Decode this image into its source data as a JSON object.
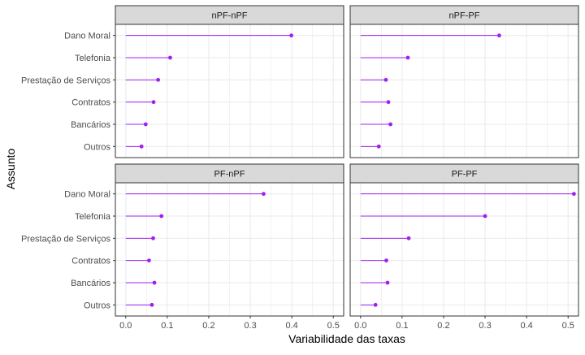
{
  "chart_data": {
    "type": "lollipop",
    "xlabel": "Variabilidade das taxas",
    "ylabel": "Assunto",
    "categories": [
      "Dano Moral",
      "Telefonia",
      "Prestação de Serviços",
      "Contratos",
      "Bancários",
      "Outros"
    ],
    "xlim": [
      -0.025,
      0.525
    ],
    "xticks": [
      0.0,
      0.1,
      0.2,
      0.3,
      0.4,
      0.5
    ],
    "xtick_labels": [
      "0.0",
      "0.1",
      "0.2",
      "0.3",
      "0.4",
      "0.5"
    ],
    "grid": true,
    "colors": {
      "stem": "#a020f0",
      "point": "#a020f0",
      "strip": "#d9d9d9",
      "border": "#333333",
      "grid": "#ebebeb"
    },
    "panels": [
      {
        "title": "nPF-nPF",
        "values": [
          0.399,
          0.107,
          0.078,
          0.067,
          0.048,
          0.038
        ]
      },
      {
        "title": "nPF-PF",
        "values": [
          0.334,
          0.114,
          0.061,
          0.067,
          0.072,
          0.044
        ]
      },
      {
        "title": "PF-nPF",
        "values": [
          0.332,
          0.086,
          0.066,
          0.056,
          0.069,
          0.063
        ]
      },
      {
        "title": "PF-PF",
        "values": [
          0.514,
          0.3,
          0.116,
          0.062,
          0.065,
          0.036
        ]
      }
    ]
  }
}
